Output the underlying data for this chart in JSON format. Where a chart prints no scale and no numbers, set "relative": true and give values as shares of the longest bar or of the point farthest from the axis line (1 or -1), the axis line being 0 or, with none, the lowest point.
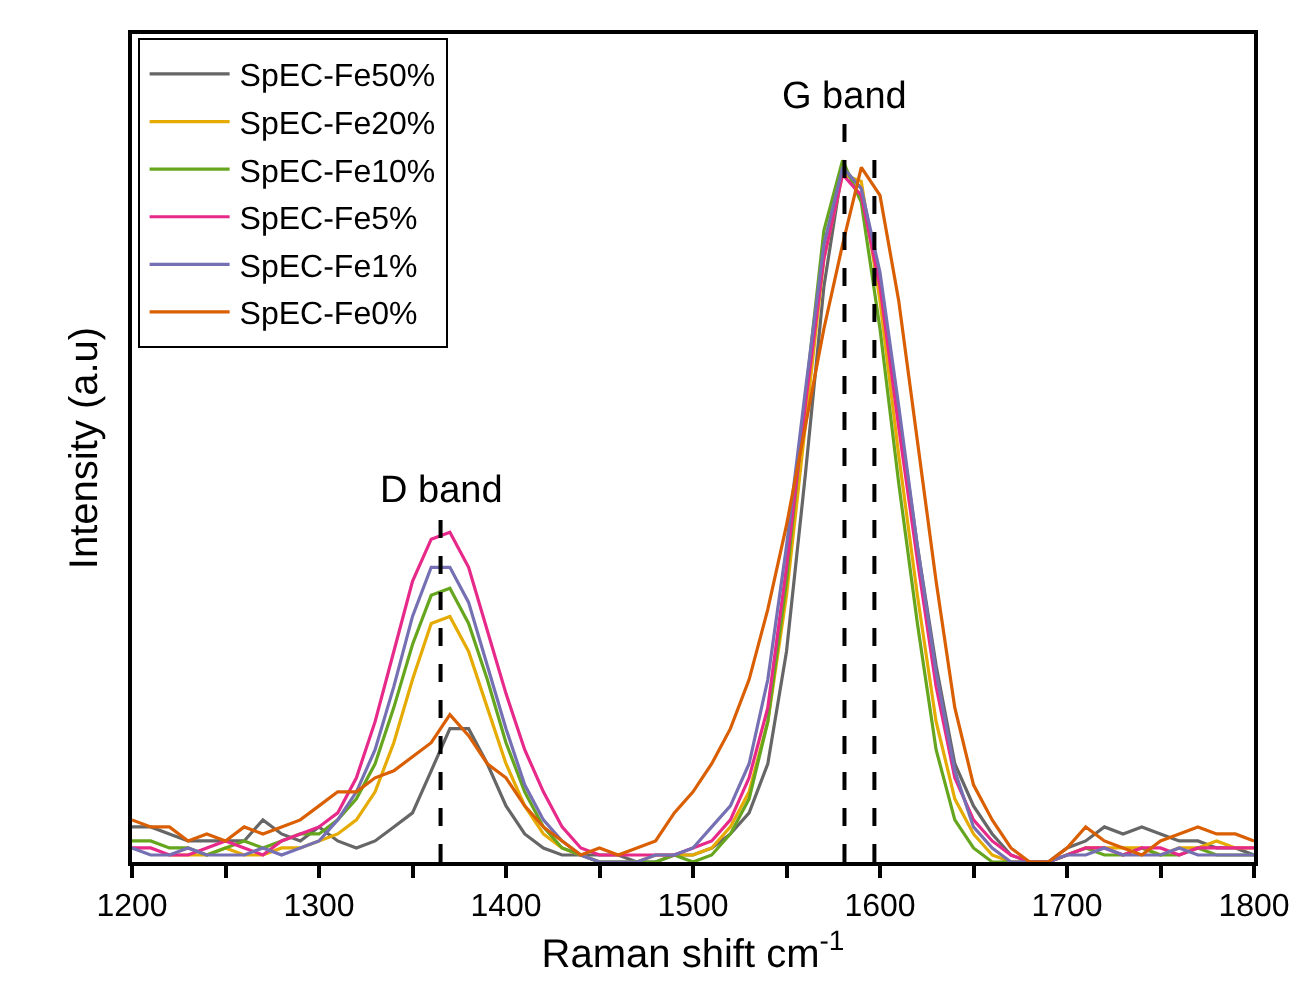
{
  "chart_data": {
    "type": "line",
    "relative": true,
    "xlabel": "Raman shift cm$^{-1}$",
    "ylabel": "Intensity (a.u)",
    "x": [
      1200,
      1210,
      1220,
      1230,
      1240,
      1250,
      1260,
      1270,
      1280,
      1290,
      1300,
      1310,
      1320,
      1330,
      1340,
      1350,
      1360,
      1370,
      1380,
      1390,
      1400,
      1410,
      1420,
      1430,
      1440,
      1450,
      1460,
      1470,
      1480,
      1490,
      1500,
      1510,
      1520,
      1530,
      1540,
      1550,
      1560,
      1570,
      1580,
      1590,
      1600,
      1610,
      1620,
      1630,
      1640,
      1650,
      1660,
      1670,
      1680,
      1690,
      1700,
      1710,
      1720,
      1730,
      1740,
      1750,
      1760,
      1770,
      1780,
      1790,
      1800
    ],
    "xlim": [
      1200,
      1800
    ],
    "xticks": [
      1200,
      {
        "value": 1250,
        "label": null
      },
      1300,
      {
        "value": 1350,
        "label": null
      },
      1400,
      {
        "value": 1450,
        "label": null
      },
      1500,
      {
        "value": 1550,
        "label": null
      },
      1600,
      {
        "value": 1650,
        "label": null
      },
      1700,
      {
        "value": 1750,
        "label": null
      },
      1800
    ],
    "legend": "top left",
    "grid": false,
    "tick_labels": "x",
    "line_style": "solid",
    "marker": "none",
    "series": [
      {
        "name": "SpEC-Fe50%",
        "color": "#666666",
        "values": [
          0.05,
          0.05,
          0.04,
          0.03,
          0.03,
          0.03,
          0.03,
          0.06,
          0.04,
          0.03,
          0.05,
          0.03,
          0.02,
          0.03,
          0.05,
          0.07,
          0.13,
          0.19,
          0.19,
          0.14,
          0.08,
          0.04,
          0.02,
          0.01,
          0.01,
          0.01,
          0.01,
          0.0,
          0.0,
          0.01,
          0.01,
          0.02,
          0.04,
          0.07,
          0.14,
          0.3,
          0.55,
          0.82,
          0.99,
          0.96,
          0.83,
          0.64,
          0.45,
          0.28,
          0.14,
          0.08,
          0.04,
          0.01,
          0.0,
          0.0,
          0.02,
          0.03,
          0.05,
          0.04,
          0.05,
          0.04,
          0.03,
          0.03,
          0.02,
          0.02,
          0.01
        ]
      },
      {
        "name": "SpEC-Fe20%",
        "color": "#e6ab02",
        "values": [
          null,
          null,
          0.01,
          0.01,
          0.01,
          0.02,
          0.01,
          0.01,
          0.02,
          0.02,
          0.03,
          0.04,
          0.06,
          0.1,
          0.17,
          0.26,
          0.34,
          0.35,
          0.3,
          0.22,
          0.14,
          0.08,
          0.04,
          0.02,
          0.01,
          0.0,
          0.0,
          0.0,
          0.01,
          0.01,
          0.01,
          0.02,
          0.05,
          0.1,
          0.2,
          0.38,
          0.62,
          0.86,
          0.98,
          0.97,
          0.8,
          0.58,
          0.38,
          0.2,
          0.09,
          0.04,
          0.01,
          0.0,
          0.0,
          0.0,
          0.01,
          0.02,
          0.02,
          0.02,
          0.02,
          0.01,
          0.02,
          0.02,
          0.03,
          0.02,
          0.02
        ]
      },
      {
        "name": "SpEC-Fe10%",
        "color": "#66a61e",
        "values": [
          0.03,
          0.03,
          0.02,
          0.02,
          0.01,
          0.02,
          0.03,
          0.02,
          0.03,
          0.04,
          0.04,
          0.06,
          0.09,
          0.14,
          0.22,
          0.31,
          0.38,
          0.39,
          0.34,
          0.26,
          0.17,
          0.1,
          0.05,
          0.02,
          0.01,
          0.0,
          0.0,
          0.0,
          0.0,
          0.01,
          0.0,
          0.01,
          0.04,
          0.09,
          0.2,
          0.4,
          0.66,
          0.9,
          1.0,
          0.94,
          0.76,
          0.54,
          0.34,
          0.16,
          0.06,
          0.02,
          0.0,
          0.0,
          0.0,
          0.0,
          0.01,
          0.02,
          0.01,
          0.01,
          0.02,
          0.01,
          0.01,
          0.02,
          0.01,
          0.01,
          0.01
        ]
      },
      {
        "name": "SpEC-Fe5%",
        "color": "#e7298a",
        "values": [
          0.02,
          0.02,
          0.01,
          0.01,
          0.02,
          0.03,
          0.02,
          0.01,
          0.03,
          0.04,
          0.05,
          0.07,
          0.12,
          0.2,
          0.3,
          0.4,
          0.46,
          0.47,
          0.42,
          0.33,
          0.24,
          0.16,
          0.1,
          0.05,
          0.02,
          0.01,
          0.01,
          0.01,
          0.01,
          0.01,
          0.02,
          0.03,
          0.06,
          0.12,
          0.22,
          0.42,
          0.65,
          0.86,
          0.98,
          0.95,
          0.82,
          0.62,
          0.43,
          0.25,
          0.12,
          0.06,
          0.03,
          0.01,
          0.0,
          0.0,
          0.01,
          0.02,
          0.02,
          0.01,
          0.02,
          0.02,
          0.01,
          0.02,
          0.02,
          0.02,
          0.02
        ]
      },
      {
        "name": "SpEC-Fe1%",
        "color": "#7570b3",
        "values": [
          0.02,
          0.01,
          0.01,
          0.02,
          0.01,
          0.01,
          0.01,
          0.02,
          0.01,
          0.02,
          0.03,
          0.06,
          0.1,
          0.16,
          0.25,
          0.35,
          0.42,
          0.42,
          0.37,
          0.28,
          0.19,
          0.11,
          0.06,
          0.03,
          0.01,
          0.0,
          0.0,
          0.0,
          0.01,
          0.01,
          0.02,
          0.05,
          0.08,
          0.14,
          0.26,
          0.45,
          0.67,
          0.88,
          0.99,
          0.96,
          0.84,
          0.65,
          0.45,
          0.27,
          0.13,
          0.05,
          0.02,
          0.0,
          0.0,
          0.0,
          0.01,
          0.01,
          0.02,
          0.01,
          0.01,
          0.01,
          0.02,
          0.01,
          0.01,
          0.01,
          0.01
        ]
      },
      {
        "name": "SpEC-Fe0%",
        "color": "#d95f02",
        "values": [
          0.06,
          0.05,
          0.05,
          0.03,
          0.04,
          0.03,
          0.05,
          0.04,
          0.05,
          0.06,
          0.08,
          0.1,
          0.1,
          0.12,
          0.13,
          0.15,
          0.17,
          0.21,
          0.18,
          0.14,
          0.12,
          0.08,
          0.05,
          0.03,
          0.01,
          0.02,
          0.01,
          0.02,
          0.03,
          0.07,
          0.1,
          0.14,
          0.19,
          0.26,
          0.36,
          0.48,
          0.62,
          0.76,
          0.88,
          0.99,
          0.95,
          0.8,
          0.6,
          0.4,
          0.22,
          0.11,
          0.06,
          0.02,
          0.0,
          0.0,
          0.02,
          0.05,
          0.03,
          0.02,
          0.01,
          0.03,
          0.04,
          0.05,
          0.04,
          0.04,
          0.03
        ]
      }
    ],
    "ref_lines": [
      {
        "axis": "x",
        "value": 1365,
        "label": "D band",
        "color": "#000000",
        "line_style": "dashed"
      },
      {
        "axis": "x",
        "value": 1581,
        "label": "G band",
        "color": "#000000",
        "line_style": "dashed"
      },
      {
        "axis": "x",
        "value": 1597,
        "label": null,
        "color": "#000000",
        "line_style": "dashed"
      }
    ]
  }
}
